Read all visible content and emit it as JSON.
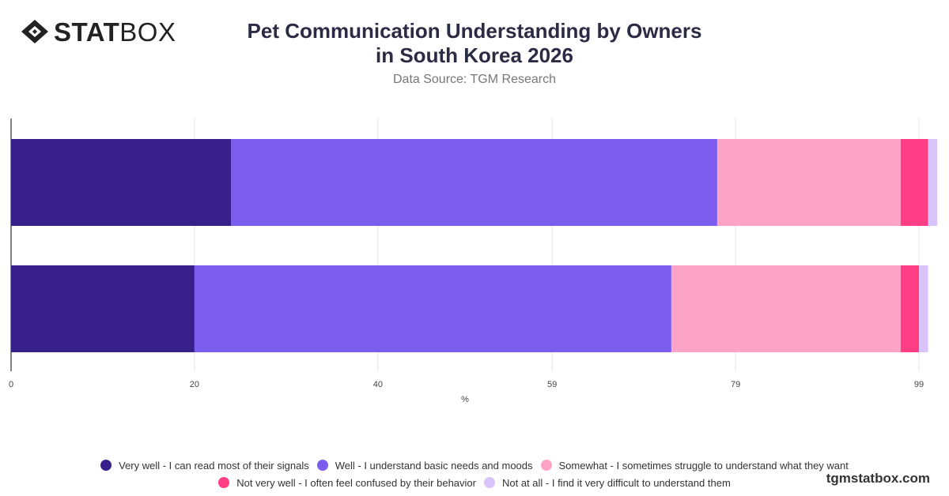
{
  "header": {
    "logo_bold": "STAT",
    "logo_light": "BOX",
    "title": "Pet Communication Understanding by Owners in South Korea 2026",
    "subtitle": "Data Source: TGM Research"
  },
  "footer": {
    "brand": "tgmstatbox.com"
  },
  "colors": {
    "very_well": "#38208a",
    "well": "#7b5cef",
    "somewhat": "#fda4c6",
    "not_very_well": "#ff3e86",
    "not_at_all": "#d8c3fb"
  },
  "chart_data": {
    "type": "bar",
    "orientation": "horizontal",
    "stacked": true,
    "categories": [
      "",
      ""
    ],
    "series": [
      {
        "name": "Very well - I can read most of their signals",
        "color": "#38208a",
        "values": [
          24,
          20
        ]
      },
      {
        "name": "Well - I understand basic needs and moods",
        "color": "#7b5cef",
        "values": [
          53,
          52
        ]
      },
      {
        "name": "Somewhat - I sometimes struggle to understand what they want",
        "color": "#fda4c6",
        "values": [
          20,
          25
        ]
      },
      {
        "name": "Not very well - I often feel confused by their behavior",
        "color": "#ff3e86",
        "values": [
          3,
          2
        ]
      },
      {
        "name": "Not at all - I find it very difficult to understand them",
        "color": "#d8c3fb",
        "values": [
          1,
          1
        ]
      }
    ],
    "xlabel": "%",
    "ylabel": "",
    "xticks": [
      "0",
      "20",
      "40",
      "59",
      "79",
      "99"
    ],
    "xlim": [
      0,
      99
    ],
    "grid": true,
    "legend": "bottom"
  }
}
